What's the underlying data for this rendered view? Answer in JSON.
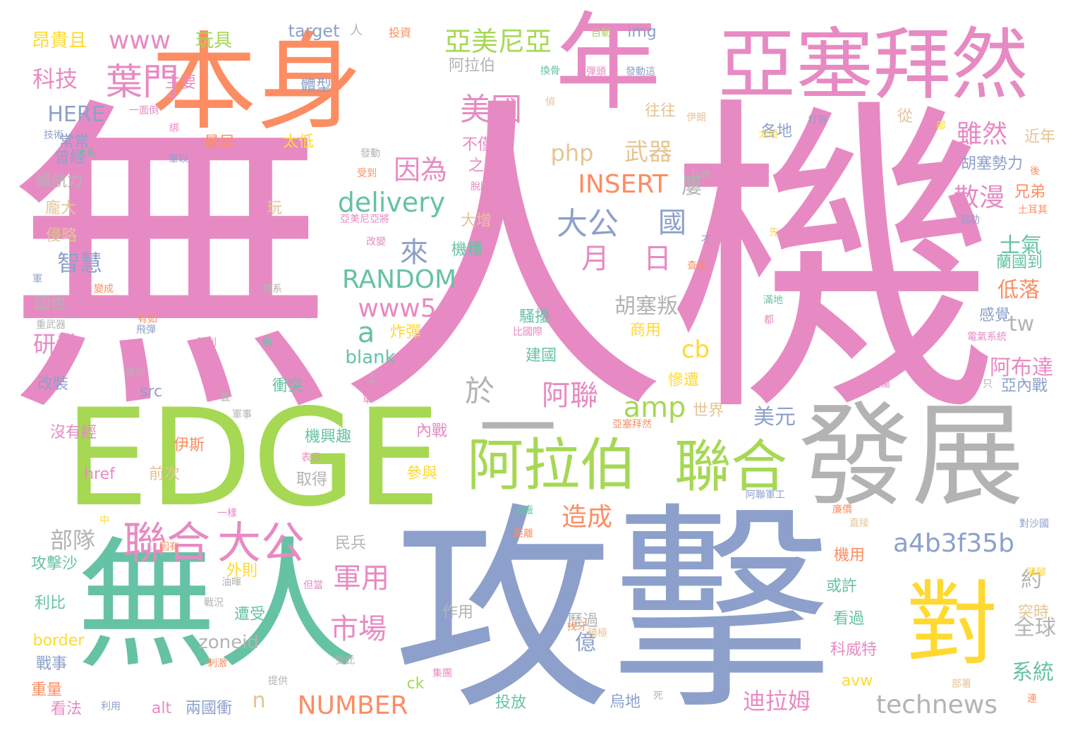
{
  "palette": {
    "pink": "#e78ac3",
    "orange": "#fc8d62",
    "green": "#a6d854",
    "teal": "#66c2a5",
    "blue": "#8da0cb",
    "yellow": "#ffd92f",
    "tan": "#e5c494",
    "gray": "#b3b3b3"
  },
  "words": [
    {
      "text": "無人機",
      "color": "pink"
    },
    {
      "text": "攻擊",
      "color": "blue"
    },
    {
      "text": "EDGE",
      "color": "green"
    },
    {
      "text": "本身",
      "color": "orange"
    },
    {
      "text": "年",
      "color": "pink"
    },
    {
      "text": "亞塞拜然",
      "color": "pink"
    },
    {
      "text": "無人",
      "color": "teal"
    },
    {
      "text": "發展",
      "color": "gray"
    },
    {
      "text": "一",
      "color": "gray"
    },
    {
      "text": "對",
      "color": "yellow"
    },
    {
      "text": "阿拉伯",
      "color": "green"
    },
    {
      "text": "聯合",
      "color": "green"
    },
    {
      "text": "聯合",
      "color": "pink"
    },
    {
      "text": "大公",
      "color": "pink"
    },
    {
      "text": "葉門",
      "color": "pink"
    },
    {
      "text": "美國",
      "color": "pink"
    },
    {
      "text": "亞美尼亞",
      "color": "green"
    },
    {
      "text": "delivery",
      "color": "teal"
    },
    {
      "text": "RANDOM",
      "color": "teal"
    },
    {
      "text": "INSERT",
      "color": "orange"
    },
    {
      "text": "technews",
      "color": "gray"
    },
    {
      "text": "a4b3f35b",
      "color": "blue"
    },
    {
      "text": "NUMBER",
      "color": "orange"
    },
    {
      "text": "www",
      "color": "pink"
    },
    {
      "text": "www5",
      "color": "pink"
    },
    {
      "text": "HERE",
      "color": "blue"
    },
    {
      "text": "php",
      "color": "tan"
    },
    {
      "text": "amp",
      "color": "green"
    },
    {
      "text": "因為",
      "color": "pink"
    },
    {
      "text": "武器",
      "color": "tan"
    },
    {
      "text": "大公",
      "color": "blue"
    },
    {
      "text": "國",
      "color": "blue"
    },
    {
      "text": "來",
      "color": "blue"
    },
    {
      "text": "月",
      "color": "pink"
    },
    {
      "text": "日",
      "color": "pink"
    },
    {
      "text": "雖然",
      "color": "pink"
    },
    {
      "text": "散漫",
      "color": "pink"
    },
    {
      "text": "阿聯",
      "color": "pink"
    },
    {
      "text": "軍用",
      "color": "pink"
    },
    {
      "text": "市場",
      "color": "pink"
    },
    {
      "text": "造成",
      "color": "orange"
    },
    {
      "text": "於",
      "color": "gray"
    },
    {
      "text": "a",
      "color": "teal"
    },
    {
      "text": "cb",
      "color": "yellow"
    },
    {
      "text": "科技",
      "color": "pink"
    },
    {
      "text": "智慧",
      "color": "blue"
    },
    {
      "text": "研發",
      "color": "pink"
    },
    {
      "text": "部隊",
      "color": "gray"
    },
    {
      "text": "迪拉姆",
      "color": "pink"
    },
    {
      "text": "美元",
      "color": "blue"
    },
    {
      "text": "全球",
      "color": "gray"
    },
    {
      "text": "系統",
      "color": "teal"
    },
    {
      "text": "阿布達",
      "color": "pink"
    },
    {
      "text": "低落",
      "color": "orange"
    },
    {
      "text": "士氣",
      "color": "teal"
    },
    {
      "text": "胡塞叛",
      "color": "gray"
    },
    {
      "text": "tw",
      "color": "gray"
    },
    {
      "text": "n",
      "color": "tan"
    },
    {
      "text": "億",
      "color": "blue"
    },
    {
      "text": "約",
      "color": "gray"
    },
    {
      "text": "blank",
      "color": "teal"
    },
    {
      "text": "zoneid",
      "color": "gray"
    },
    {
      "text": "屢",
      "color": "gray"
    },
    {
      "text": "玩具",
      "color": "green"
    },
    {
      "text": "昂貴且",
      "color": "yellow"
    },
    {
      "text": "target",
      "color": "blue"
    },
    {
      "text": "img",
      "color": "blue"
    },
    {
      "text": "阿拉伯",
      "color": "gray"
    },
    {
      "text": "體型",
      "color": "blue"
    },
    {
      "text": "主要",
      "color": "pink"
    },
    {
      "text": "常常",
      "color": "blue"
    },
    {
      "text": "曾經",
      "color": "blue"
    },
    {
      "text": "最早",
      "color": "orange"
    },
    {
      "text": "太低",
      "color": "yellow"
    },
    {
      "text": "往往",
      "color": "tan"
    },
    {
      "text": "各地",
      "color": "blue"
    },
    {
      "text": "近年",
      "color": "tan"
    },
    {
      "text": "從",
      "color": "tan"
    },
    {
      "text": "不僅",
      "color": "pink"
    },
    {
      "text": "之邦",
      "color": "pink"
    },
    {
      "text": "胡塞勢力",
      "color": "blue"
    },
    {
      "text": "兄弟",
      "color": "orange"
    },
    {
      "text": "續航力",
      "color": "gray"
    },
    {
      "text": "龐大",
      "color": "tan"
    },
    {
      "text": "侵略",
      "color": "tan"
    },
    {
      "text": "玩",
      "color": "tan"
    },
    {
      "text": "大增",
      "color": "tan"
    },
    {
      "text": "機種",
      "color": "teal"
    },
    {
      "text": "蘭國到",
      "color": "teal"
    },
    {
      "text": "國也",
      "color": "gray"
    },
    {
      "text": "感覺",
      "color": "blue"
    },
    {
      "text": "炸彈",
      "color": "yellow"
    },
    {
      "text": "騷擾",
      "color": "teal"
    },
    {
      "text": "建國",
      "color": "teal"
    },
    {
      "text": "商用",
      "color": "yellow"
    },
    {
      "text": "慘遭",
      "color": "yellow"
    },
    {
      "text": "亞內戰",
      "color": "blue"
    },
    {
      "text": "改裝",
      "color": "blue"
    },
    {
      "text": "src",
      "color": "blue"
    },
    {
      "text": "衝突",
      "color": "teal"
    },
    {
      "text": "世界",
      "color": "tan"
    },
    {
      "text": "伊斯",
      "color": "orange"
    },
    {
      "text": "沒有經",
      "color": "pink"
    },
    {
      "text": "機興趣",
      "color": "teal"
    },
    {
      "text": "內戰",
      "color": "pink"
    },
    {
      "text": "參與",
      "color": "yellow"
    },
    {
      "text": "href",
      "color": "pink"
    },
    {
      "text": "前次",
      "color": "tan"
    },
    {
      "text": "取得",
      "color": "gray"
    },
    {
      "text": "民兵",
      "color": "gray"
    },
    {
      "text": "攻擊沙",
      "color": "teal"
    },
    {
      "text": "外則",
      "color": "yellow"
    },
    {
      "text": "遭受",
      "color": "teal"
    },
    {
      "text": "利比",
      "color": "teal"
    },
    {
      "text": "或許",
      "color": "teal"
    },
    {
      "text": "機用",
      "color": "orange"
    },
    {
      "text": "看過",
      "color": "teal"
    },
    {
      "text": "突時",
      "color": "tan"
    },
    {
      "text": "歷過",
      "color": "gray"
    },
    {
      "text": "作用",
      "color": "gray"
    },
    {
      "text": "border",
      "color": "yellow"
    },
    {
      "text": "戰事",
      "color": "blue"
    },
    {
      "text": "重量",
      "color": "orange"
    },
    {
      "text": "看法",
      "color": "pink"
    },
    {
      "text": "alt",
      "color": "pink"
    },
    {
      "text": "兩國衝",
      "color": "blue"
    },
    {
      "text": "ck",
      "color": "green"
    },
    {
      "text": "投放",
      "color": "teal"
    },
    {
      "text": "烏地",
      "color": "blue"
    },
    {
      "text": "avw",
      "color": "yellow"
    },
    {
      "text": "科威特",
      "color": "pink"
    },
    {
      "text": "上",
      "color": "gray"
    },
    {
      "text": "人",
      "color": "gray"
    },
    {
      "text": "投資",
      "color": "orange"
    },
    {
      "text": "自動",
      "color": "green"
    },
    {
      "text": "換骨",
      "color": "teal"
    },
    {
      "text": "發動這",
      "color": "blue"
    },
    {
      "text": "伊朗",
      "color": "tan"
    },
    {
      "text": "打得",
      "color": "blue"
    },
    {
      "text": "部",
      "color": "yellow"
    },
    {
      "text": "後",
      "color": "orange"
    },
    {
      "text": "土耳其",
      "color": "orange"
    },
    {
      "text": "協助",
      "color": "blue"
    },
    {
      "text": "太短",
      "color": "yellow"
    },
    {
      "text": "受到",
      "color": "orange"
    },
    {
      "text": "比較",
      "color": "gray"
    },
    {
      "text": "脫胎",
      "color": "pink"
    },
    {
      "text": "發動",
      "color": "gray"
    },
    {
      "text": "亞美尼亞將",
      "color": "pink"
    },
    {
      "text": "改變",
      "color": "pink"
    },
    {
      "text": "機場",
      "color": "pink"
    },
    {
      "text": "才",
      "color": "blue"
    },
    {
      "text": "查出",
      "color": "orange"
    },
    {
      "text": "先",
      "color": "yellow"
    },
    {
      "text": "滿地",
      "color": "teal"
    },
    {
      "text": "都",
      "color": "pink"
    },
    {
      "text": "一面倒",
      "color": "pink"
    },
    {
      "text": "技術",
      "color": "blue"
    },
    {
      "text": "大亂",
      "color": "teal"
    },
    {
      "text": "軍以",
      "color": "blue"
    },
    {
      "text": "重武器",
      "color": "gray"
    },
    {
      "text": "軍",
      "color": "blue"
    },
    {
      "text": "體系",
      "color": "gray"
    },
    {
      "text": "變成",
      "color": "orange"
    },
    {
      "text": "有如",
      "color": "orange"
    },
    {
      "text": "飛彈",
      "color": "blue"
    },
    {
      "text": "勝利",
      "color": "pink"
    },
    {
      "text": "相",
      "color": "teal"
    },
    {
      "text": "比國際",
      "color": "pink"
    },
    {
      "text": "該次",
      "color": "gray"
    },
    {
      "text": "載",
      "color": "gray"
    },
    {
      "text": "軍事",
      "color": "gray"
    },
    {
      "text": "車",
      "color": "pink"
    },
    {
      "text": "亞塞拜然",
      "color": "orange"
    },
    {
      "text": "受傷",
      "color": "pink"
    },
    {
      "text": "只",
      "color": "gray"
    },
    {
      "text": "電氣系統",
      "color": "pink"
    },
    {
      "text": "阿聯軍工",
      "color": "blue"
    },
    {
      "text": "表示",
      "color": "pink"
    },
    {
      "text": "一樣",
      "color": "pink"
    },
    {
      "text": "油廠",
      "color": "teal"
    },
    {
      "text": "距離",
      "color": "orange"
    },
    {
      "text": "廉價",
      "color": "orange"
    },
    {
      "text": "直接",
      "color": "tan"
    },
    {
      "text": "對沙國",
      "color": "blue"
    },
    {
      "text": "中",
      "color": "yellow"
    },
    {
      "text": "因有",
      "color": "orange"
    },
    {
      "text": "油暉",
      "color": "gray"
    },
    {
      "text": "但當",
      "color": "pink"
    },
    {
      "text": "戰況",
      "color": "gray"
    },
    {
      "text": "找牙",
      "color": "orange"
    },
    {
      "text": "積極",
      "color": "tan"
    },
    {
      "text": "陣腳",
      "color": "yellow"
    },
    {
      "text": "刺激",
      "color": "orange"
    },
    {
      "text": "受此",
      "color": "gray"
    },
    {
      "text": "集團",
      "color": "pink"
    },
    {
      "text": "部署",
      "color": "tan"
    },
    {
      "text": "連",
      "color": "orange"
    },
    {
      "text": "提供",
      "color": "gray"
    },
    {
      "text": "利用",
      "color": "blue"
    },
    {
      "text": "死",
      "color": "gray"
    },
    {
      "text": "彈頭",
      "color": "pink"
    },
    {
      "text": "偵",
      "color": "tan"
    },
    {
      "text": "綁",
      "color": "pink"
    }
  ]
}
